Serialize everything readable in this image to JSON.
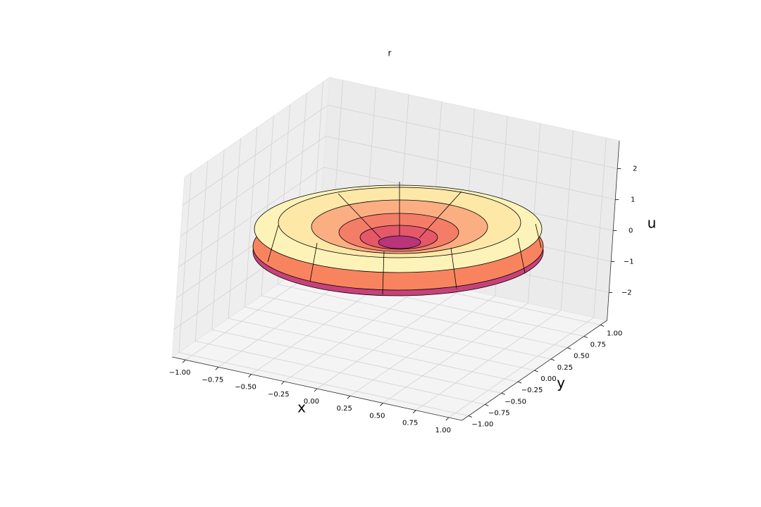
{
  "chart_data": {
    "type": "surface3d",
    "title": "r",
    "xlabel": "x",
    "ylabel": "y",
    "zlabel": "u",
    "xlim": [
      -1.1,
      1.1
    ],
    "ylim": [
      -1.1,
      1.1
    ],
    "zlim": [
      -2.9,
      2.9
    ],
    "xticks": [
      {
        "value": -1,
        "label": "−1.00"
      },
      {
        "value": -0.75,
        "label": "−0.75"
      },
      {
        "value": -0.5,
        "label": "−0.50"
      },
      {
        "value": -0.25,
        "label": "−0.25"
      },
      {
        "value": 0,
        "label": "0.00"
      },
      {
        "value": 0.25,
        "label": "0.25"
      },
      {
        "value": 0.5,
        "label": "0.50"
      },
      {
        "value": 0.75,
        "label": "0.75"
      },
      {
        "value": 1,
        "label": "1.00"
      }
    ],
    "yticks": [
      {
        "value": -1,
        "label": "−1.00"
      },
      {
        "value": -0.75,
        "label": "−0.75"
      },
      {
        "value": -0.5,
        "label": "−0.50"
      },
      {
        "value": -0.25,
        "label": "−0.25"
      },
      {
        "value": 0,
        "label": "0.00"
      },
      {
        "value": 0.25,
        "label": "0.25"
      },
      {
        "value": 0.5,
        "label": "0.50"
      },
      {
        "value": 0.75,
        "label": "0.75"
      },
      {
        "value": 1,
        "label": "1.00"
      }
    ],
    "zticks": [
      {
        "value": -2,
        "label": "−2"
      },
      {
        "value": -1,
        "label": "−1"
      },
      0,
      1,
      2
    ],
    "grid": true
  }
}
